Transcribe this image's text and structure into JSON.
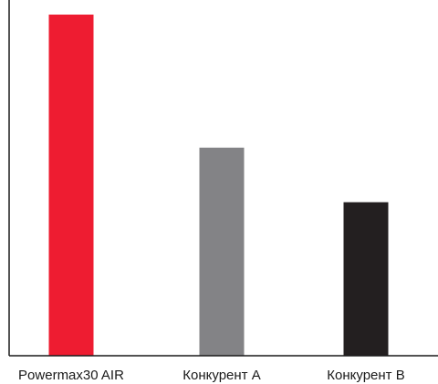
{
  "chart_data": {
    "type": "bar",
    "title": "",
    "xlabel": "",
    "ylabel": "",
    "categories": [
      "Powermax30 AIR",
      "Конкурент A",
      "Конкурент B"
    ],
    "values": [
      100,
      61,
      45
    ],
    "colors": [
      "#ee1c31",
      "#838386",
      "#231f20"
    ],
    "ylim": [
      0,
      100
    ],
    "grid": false,
    "legend": "none"
  }
}
